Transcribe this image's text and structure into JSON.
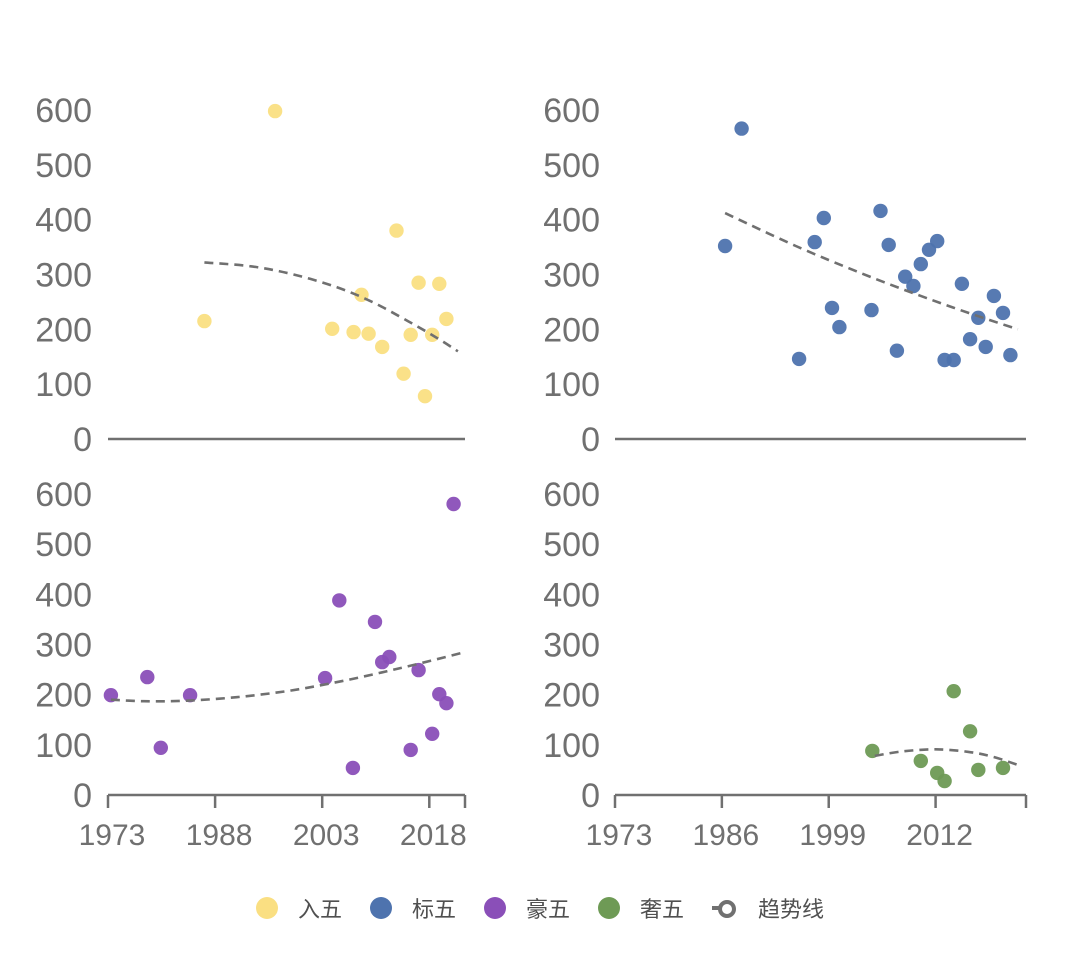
{
  "chart_data": {
    "type": "scatter",
    "layout": "2x2 small multiples with dashed polynomial trend lines",
    "legend": {
      "position": "bottom",
      "entries": [
        {
          "label": "入五",
          "color": "#FADF82",
          "marker": "dot"
        },
        {
          "label": "标五",
          "color": "#4E73AE",
          "marker": "dot"
        },
        {
          "label": "豪五",
          "color": "#8A4FB8",
          "marker": "dot"
        },
        {
          "label": "奢五",
          "color": "#6E9A55",
          "marker": "dot"
        },
        {
          "label": "趋势线",
          "color": "#707070",
          "marker": "dashed-line"
        }
      ]
    },
    "trend_color": "#707070",
    "panels": [
      {
        "name": "入五",
        "color": "#FADF82",
        "ylim": [
          0,
          600
        ],
        "yticks": [
          "0",
          "100",
          "200",
          "300",
          "400",
          "500",
          "600"
        ],
        "xlim": [
          1973,
          2023
        ],
        "xticks": [],
        "show_x_ticks": false,
        "points": [
          [
            1986.5,
            215
          ],
          [
            1996.4,
            598
          ],
          [
            2004.4,
            201
          ],
          [
            2007.4,
            195
          ],
          [
            2008.5,
            263
          ],
          [
            2009.5,
            192
          ],
          [
            2011.4,
            168
          ],
          [
            2013.4,
            380
          ],
          [
            2014.4,
            119
          ],
          [
            2015.4,
            190
          ],
          [
            2016.5,
            285
          ],
          [
            2017.4,
            78
          ],
          [
            2018.4,
            190
          ],
          [
            2019.4,
            283
          ],
          [
            2020.4,
            219
          ]
        ],
        "trend": [
          [
            1986.5,
            322
          ],
          [
            1993,
            315
          ],
          [
            1999,
            300
          ],
          [
            2005,
            277
          ],
          [
            2010,
            250
          ],
          [
            2015,
            215
          ],
          [
            2019,
            185
          ],
          [
            2022,
            160
          ]
        ]
      },
      {
        "name": "标五",
        "color": "#4E73AE",
        "ylim": [
          0,
          600
        ],
        "yticks": [
          "0",
          "100",
          "200",
          "300",
          "400",
          "500",
          "600"
        ],
        "xlim": [
          1973,
          2023
        ],
        "xticks": [],
        "show_x_ticks": false,
        "points": [
          [
            1986.4,
            352
          ],
          [
            1988.4,
            566
          ],
          [
            1995.4,
            146
          ],
          [
            1997.3,
            359
          ],
          [
            1998.4,
            403
          ],
          [
            1999.4,
            239
          ],
          [
            2000.3,
            204
          ],
          [
            2004.2,
            235
          ],
          [
            2005.3,
            416
          ],
          [
            2006.3,
            354
          ],
          [
            2007.3,
            161
          ],
          [
            2008.3,
            296
          ],
          [
            2009.3,
            279
          ],
          [
            2010.2,
            319
          ],
          [
            2011.2,
            345
          ],
          [
            2012.2,
            361
          ],
          [
            2013.1,
            144
          ],
          [
            2014.2,
            144
          ],
          [
            2015.2,
            283
          ],
          [
            2016.2,
            182
          ],
          [
            2017.2,
            221
          ],
          [
            2018.1,
            168
          ],
          [
            2019.1,
            261
          ],
          [
            2020.2,
            230
          ],
          [
            2021.1,
            153
          ]
        ],
        "trend": [
          [
            1986.4,
            412
          ],
          [
            1995,
            352
          ],
          [
            2003,
            302
          ],
          [
            2010,
            262
          ],
          [
            2016,
            230
          ],
          [
            2022,
            200
          ]
        ]
      },
      {
        "name": "豪五",
        "color": "#8A4FB8",
        "ylim": [
          0,
          600
        ],
        "yticks": [
          "0",
          "100",
          "200",
          "300",
          "400",
          "500",
          "600"
        ],
        "xlim": [
          1973,
          2023
        ],
        "xticks": [
          "1973",
          "1988",
          "2003",
          "2018"
        ],
        "xtick_values": [
          1973,
          1988,
          2003,
          2018
        ],
        "show_x_ticks": true,
        "points": [
          [
            1973.4,
            199
          ],
          [
            1978.5,
            235
          ],
          [
            1980.4,
            94
          ],
          [
            1984.5,
            199
          ],
          [
            2003.4,
            233
          ],
          [
            2005.4,
            388
          ],
          [
            2007.3,
            54
          ],
          [
            2010.4,
            345
          ],
          [
            2011.4,
            265
          ],
          [
            2012.4,
            275
          ],
          [
            2015.4,
            90
          ],
          [
            2016.5,
            249
          ],
          [
            2018.4,
            122
          ],
          [
            2019.4,
            201
          ],
          [
            2020.4,
            183
          ],
          [
            2021.4,
            580
          ]
        ],
        "trend": [
          [
            1973.4,
            190
          ],
          [
            1978,
            187
          ],
          [
            1984,
            188
          ],
          [
            1991,
            195
          ],
          [
            1998,
            207
          ],
          [
            2004,
            222
          ],
          [
            2010,
            240
          ],
          [
            2016,
            260
          ],
          [
            2022.5,
            283
          ]
        ]
      },
      {
        "name": "奢五",
        "color": "#6E9A55",
        "ylim": [
          0,
          600
        ],
        "yticks": [
          "0",
          "100",
          "200",
          "300",
          "400",
          "500",
          "600"
        ],
        "xlim": [
          1973,
          2023
        ],
        "xticks": [
          "1973",
          "1986",
          "1999",
          "2012"
        ],
        "xtick_values": [
          1973,
          1986,
          1999,
          2012
        ],
        "show_x_ticks": true,
        "points": [
          [
            2004.3,
            88
          ],
          [
            2010.2,
            68
          ],
          [
            2012.2,
            44
          ],
          [
            2013.1,
            28
          ],
          [
            2014.2,
            207
          ],
          [
            2016.2,
            127
          ],
          [
            2017.2,
            50
          ],
          [
            2020.2,
            54
          ]
        ],
        "trend": [
          [
            2004.6,
            78
          ],
          [
            2008,
            87
          ],
          [
            2012,
            91
          ],
          [
            2016,
            86
          ],
          [
            2019,
            76
          ],
          [
            2022,
            60
          ]
        ]
      }
    ]
  }
}
